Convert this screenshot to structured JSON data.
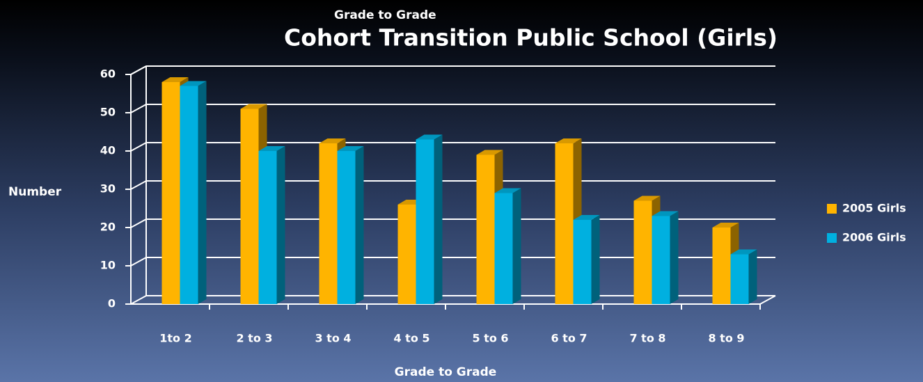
{
  "chart_data": {
    "type": "bar3d",
    "subtitle": "Grade to Grade",
    "title": "Cohort Transition Public School (Girls)",
    "y_label": "Number",
    "x_label": "Grade to Grade",
    "categories": [
      "1to 2",
      "2 to 3",
      "3 to 4",
      "4 to 5",
      "5 to 6",
      "6 to 7",
      "7 to 8",
      "8 to 9"
    ],
    "series": [
      {
        "name": "2005 Girls",
        "color": "#ffb400",
        "values": [
          58,
          51,
          42,
          26,
          39,
          42,
          27,
          20
        ]
      },
      {
        "name": "2006 Girls",
        "color": "#00b0e0",
        "values": [
          57,
          40,
          40,
          43,
          29,
          22,
          23,
          13
        ]
      }
    ],
    "ylim": [
      0,
      60
    ],
    "yticks": [
      0,
      10,
      20,
      30,
      40,
      50,
      60
    ],
    "grid": true,
    "legend": "right"
  }
}
